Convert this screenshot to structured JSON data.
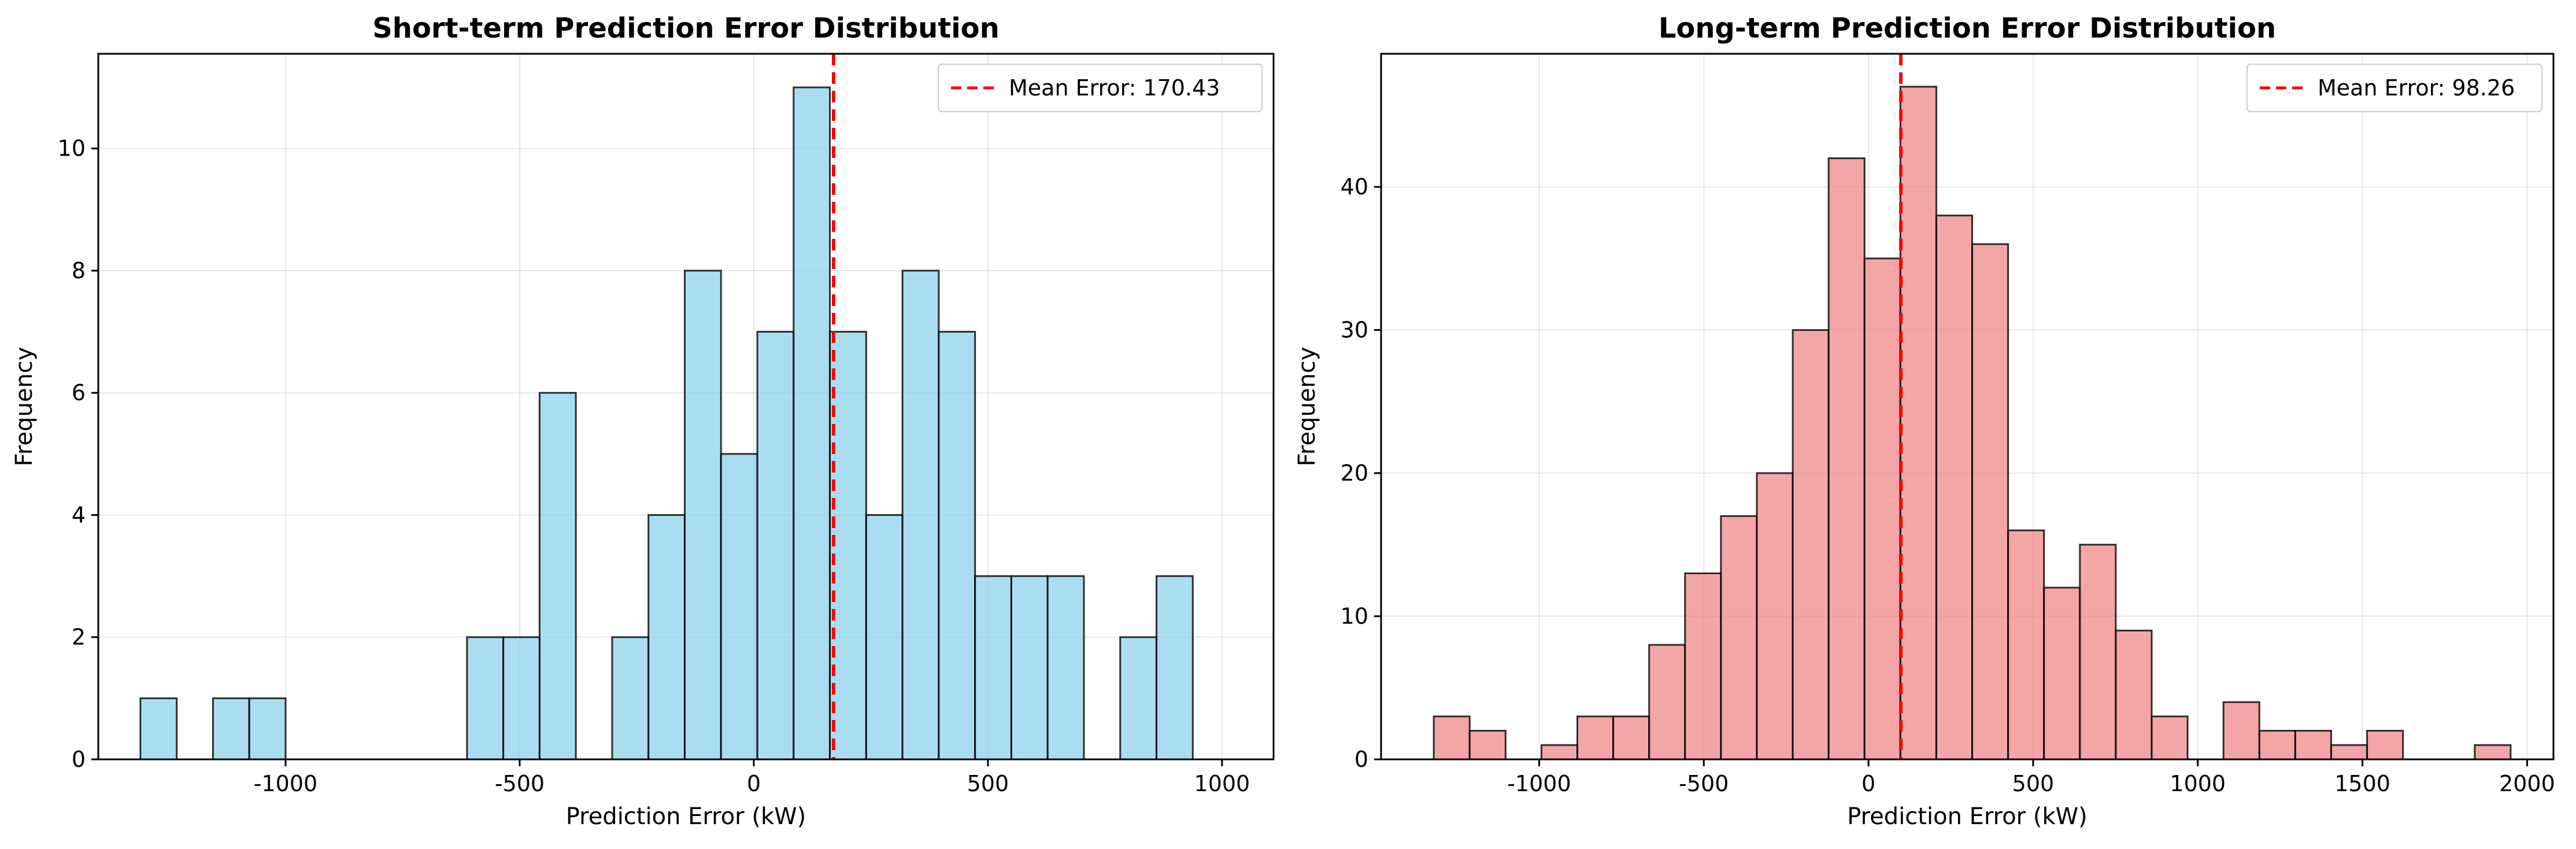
{
  "chart_data": [
    {
      "type": "bar",
      "subtype": "histogram",
      "title": "Short-term Prediction Error Distribution",
      "xlabel": "Prediction Error (kW)",
      "ylabel": "Frequency",
      "xlim": [
        -1400,
        1110
      ],
      "ylim": [
        0,
        11.55
      ],
      "xticks": [
        -1000,
        -500,
        0,
        500,
        1000
      ],
      "xtick_labels": [
        "-1000",
        "-500",
        "0",
        "500",
        "1000"
      ],
      "yticks": [
        0,
        2,
        4,
        6,
        8,
        10
      ],
      "ytick_labels": [
        "0",
        "2",
        "4",
        "6",
        "8",
        "10"
      ],
      "bin_start": -1310,
      "bin_width": 77.5,
      "counts": [
        1,
        0,
        1,
        1,
        0,
        0,
        0,
        0,
        0,
        2,
        2,
        6,
        0,
        2,
        4,
        8,
        5,
        7,
        11,
        7,
        4,
        8,
        7,
        3,
        3,
        3,
        0,
        2,
        3
      ],
      "bar_color": "#87CEEB",
      "grid": true,
      "legend": {
        "position": "top-right",
        "label": "Mean Error: 170.43"
      },
      "mean_line": {
        "x": 170.43,
        "color": "#ff0000"
      }
    },
    {
      "type": "bar",
      "subtype": "histogram",
      "title": "Long-term Prediction Error Distribution",
      "xlabel": "Prediction Error (kW)",
      "ylabel": "Frequency",
      "xlim": [
        -1480,
        2080
      ],
      "ylim": [
        0,
        49.3
      ],
      "xticks": [
        -1000,
        -500,
        0,
        500,
        1000,
        1500,
        2000
      ],
      "xtick_labels": [
        "-1000",
        "-500",
        "0",
        "500",
        "1000",
        "1500",
        "2000"
      ],
      "yticks": [
        0,
        10,
        20,
        30,
        40
      ],
      "ytick_labels": [
        "0",
        "10",
        "20",
        "30",
        "40"
      ],
      "bin_start": -1320,
      "bin_width": 109,
      "counts": [
        3,
        2,
        0,
        1,
        3,
        3,
        8,
        13,
        17,
        20,
        30,
        42,
        35,
        47,
        38,
        36,
        16,
        12,
        15,
        9,
        3,
        0,
        4,
        2,
        2,
        1,
        2,
        0,
        0,
        1
      ],
      "bar_color": "#F08080",
      "grid": true,
      "legend": {
        "position": "top-right",
        "label": "Mean Error: 98.26"
      },
      "mean_line": {
        "x": 98.26,
        "color": "#ff0000"
      }
    }
  ]
}
